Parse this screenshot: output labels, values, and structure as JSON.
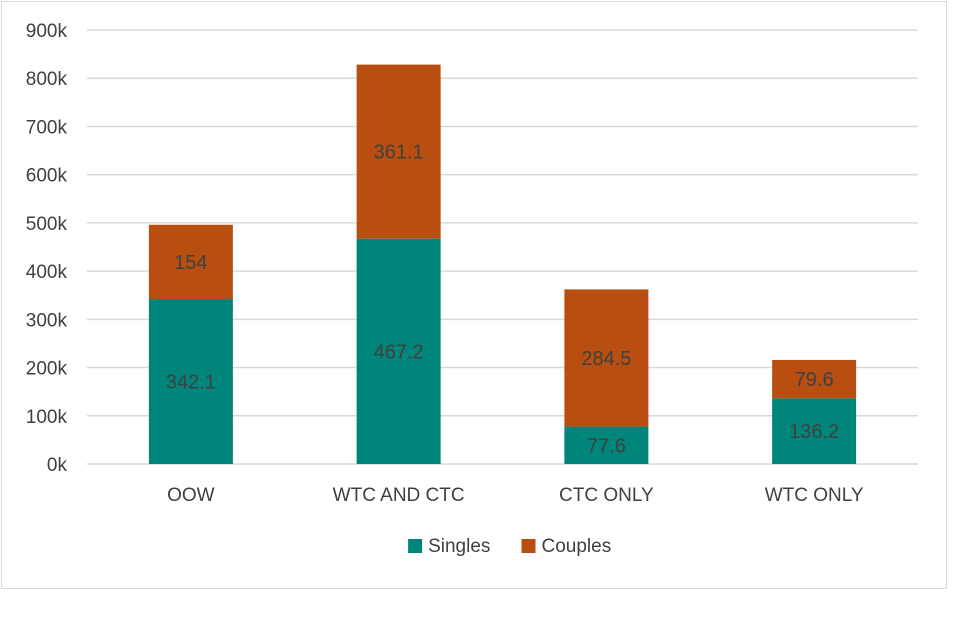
{
  "chart_data": {
    "type": "bar",
    "stacked": true,
    "title": "",
    "xlabel": "",
    "ylabel": "",
    "categories": [
      "OOW",
      "WTC AND CTC",
      "CTC ONLY",
      "WTC ONLY"
    ],
    "series": [
      {
        "name": "Singles",
        "color": "#00857a",
        "values": [
          342.1,
          467.2,
          77.6,
          136.2
        ]
      },
      {
        "name": "Couples",
        "color": "#b84f10",
        "values": [
          154,
          361.1,
          284.5,
          79.6
        ]
      }
    ],
    "data_labels": {
      "Singles": [
        "342.1",
        "467.2",
        "77.6",
        "136.2"
      ],
      "Couples": [
        "154",
        "361.1",
        "284.5",
        "79.6"
      ]
    },
    "value_scale": 1000,
    "ylim": [
      0,
      900000
    ],
    "yticks": [
      0,
      100000,
      200000,
      300000,
      400000,
      500000,
      600000,
      700000,
      800000,
      900000
    ],
    "ytick_labels": [
      "0k",
      "100k",
      "200k",
      "300k",
      "400k",
      "500k",
      "600k",
      "700k",
      "800k",
      "900k"
    ],
    "grid": true,
    "legend_position": "bottom",
    "gridline_color": "#d9d9d9"
  }
}
